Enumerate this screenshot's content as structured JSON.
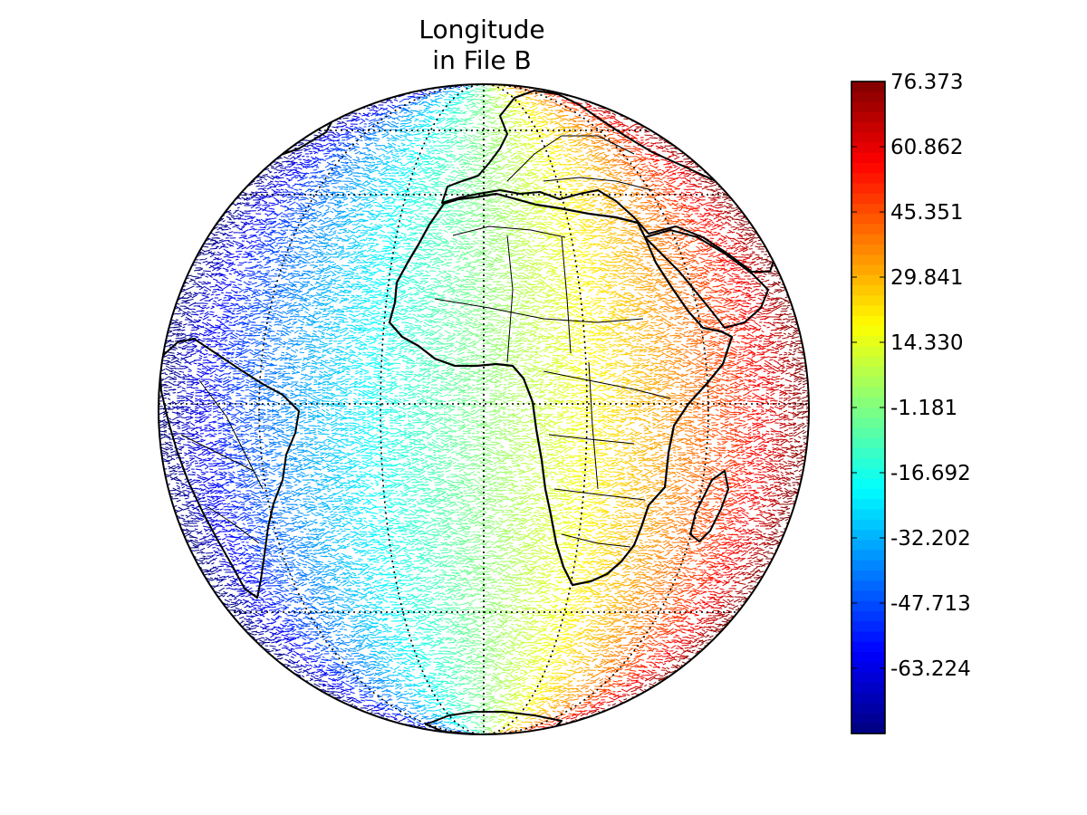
{
  "figure": {
    "title_line1": "Longitude",
    "title_line2": "in File B"
  },
  "colorbar": {
    "min": -78.735,
    "max": 76.373,
    "tick_labels": [
      "76.373",
      "60.862",
      "45.351",
      "29.841",
      "14.330",
      "-1.181",
      "-16.692",
      "-32.202",
      "-47.713",
      "-63.224"
    ],
    "tick_values": [
      76.373,
      60.862,
      45.351,
      29.841,
      14.33,
      -1.181,
      -16.692,
      -32.202,
      -47.713,
      -63.224
    ],
    "colormap": "jet",
    "orientation": "vertical"
  },
  "map": {
    "projection": "orthographic",
    "field": "longitude",
    "center_lon": 0,
    "center_lat": 10,
    "graticule_style": "dotted",
    "coastlines": true,
    "country_borders": true,
    "marker_style": "short-streaks"
  },
  "colors": {
    "jet_dark_blue": "#00008f",
    "jet_blue": "#0000ff",
    "jet_cyan": "#00ffff",
    "jet_yellow": "#ffff00",
    "jet_red": "#ff0000",
    "jet_dark_red": "#800000",
    "outline": "#000000"
  }
}
